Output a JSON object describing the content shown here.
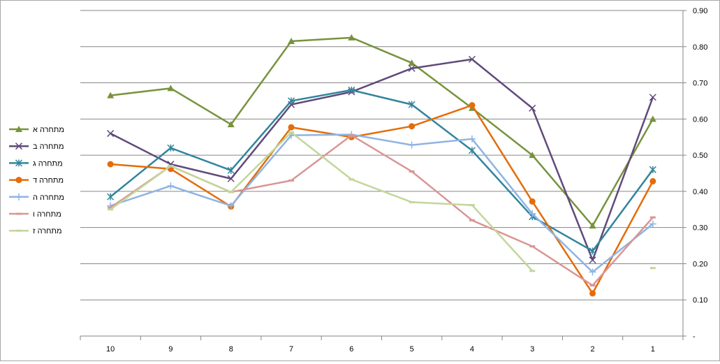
{
  "chart_data": {
    "type": "line",
    "title": "",
    "xlabel": "",
    "ylabel": "",
    "categories": [
      "10",
      "9",
      "8",
      "7",
      "6",
      "5",
      "4",
      "3",
      "2",
      "1"
    ],
    "x_axis_reversed": true,
    "y_axis_position": "right",
    "ylim": [
      0,
      0.9
    ],
    "yticks": [
      {
        "value": 0,
        "label": "-"
      },
      {
        "value": 0.1,
        "label": "0.10"
      },
      {
        "value": 0.2,
        "label": "0.20"
      },
      {
        "value": 0.3,
        "label": "0.30"
      },
      {
        "value": 0.4,
        "label": "0.40"
      },
      {
        "value": 0.5,
        "label": "0.50"
      },
      {
        "value": 0.6,
        "label": "0.60"
      },
      {
        "value": 0.7,
        "label": "0.70"
      },
      {
        "value": 0.8,
        "label": "0.80"
      },
      {
        "value": 0.9,
        "label": "0.90"
      }
    ],
    "grid": true,
    "legend_position": "left",
    "series": [
      {
        "name": "מתחרה א",
        "color": "#77933c",
        "marker": "triangle",
        "values": [
          0.665,
          0.685,
          0.585,
          0.815,
          0.825,
          0.755,
          0.63,
          0.5,
          0.305,
          0.6
        ]
      },
      {
        "name": "מתחרה ב",
        "color": "#604a7b",
        "marker": "x",
        "values": [
          0.56,
          0.475,
          0.435,
          0.64,
          0.675,
          0.74,
          0.765,
          0.63,
          0.21,
          0.66
        ]
      },
      {
        "name": "מתחרה ג",
        "color": "#31859c",
        "marker": "star",
        "values": [
          0.385,
          0.52,
          0.458,
          0.65,
          0.68,
          0.64,
          0.513,
          0.33,
          0.235,
          0.46
        ]
      },
      {
        "name": "מתחרה ד",
        "color": "#e46c0a",
        "marker": "circle",
        "values": [
          0.475,
          0.462,
          0.358,
          0.577,
          0.55,
          0.58,
          0.638,
          0.372,
          0.118,
          0.428
        ]
      },
      {
        "name": "מתחרה ה",
        "color": "#8eb4e3",
        "marker": "plus",
        "values": [
          0.36,
          0.415,
          0.36,
          0.555,
          0.557,
          0.528,
          0.545,
          0.338,
          0.177,
          0.31
        ]
      },
      {
        "name": "מתחרה ו",
        "color": "#d99694",
        "marker": "dash",
        "values": [
          0.355,
          0.47,
          0.398,
          0.43,
          0.555,
          0.455,
          0.32,
          0.248,
          0.14,
          0.328
        ]
      },
      {
        "name": "מתחרה ז",
        "color": "#c3d69b",
        "marker": "dash",
        "values": [
          0.35,
          0.47,
          0.398,
          0.563,
          0.433,
          0.37,
          0.362,
          0.18,
          null,
          0.188
        ]
      }
    ]
  }
}
